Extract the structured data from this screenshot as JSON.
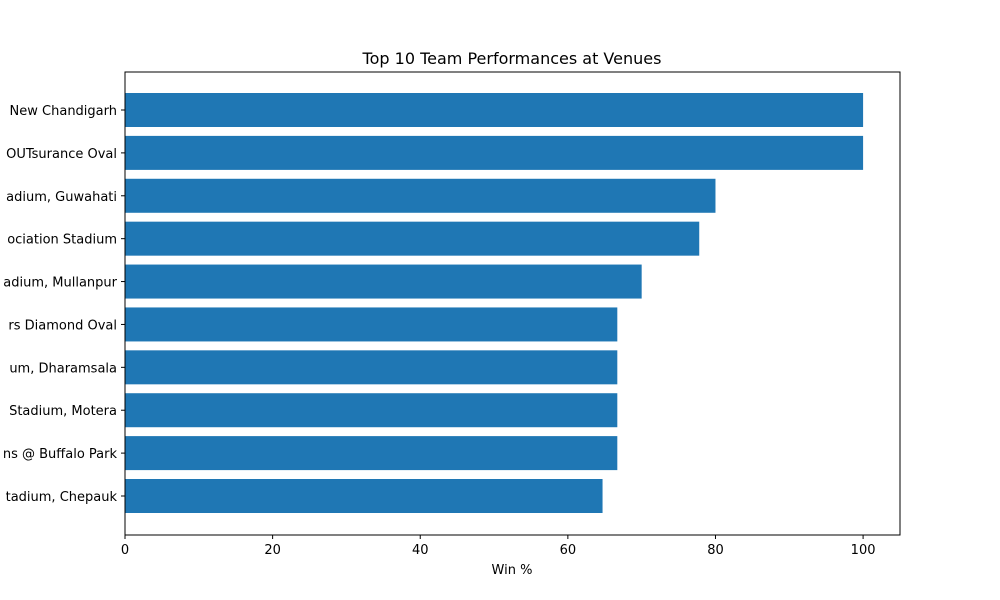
{
  "chart_data": {
    "type": "bar",
    "orientation": "horizontal",
    "title": "Top 10 Team Performances at Venues",
    "xlabel": "Win %",
    "ylabel": "",
    "xlim": [
      0,
      105
    ],
    "x_ticks": [
      0,
      20,
      40,
      60,
      80,
      100
    ],
    "bar_color": "#1f77b4",
    "grid": false,
    "categories": [
      "New Chandigarh",
      "OUTsurance Oval",
      "adium, Guwahati",
      "ociation Stadium",
      "adium, Mullanpur",
      "rs Diamond Oval",
      "um, Dharamsala",
      "Stadium, Motera",
      "ns @ Buffalo Park",
      "tadium, Chepauk"
    ],
    "values": [
      100,
      100,
      80,
      77.8,
      70,
      66.7,
      66.7,
      66.7,
      66.7,
      64.7
    ]
  }
}
